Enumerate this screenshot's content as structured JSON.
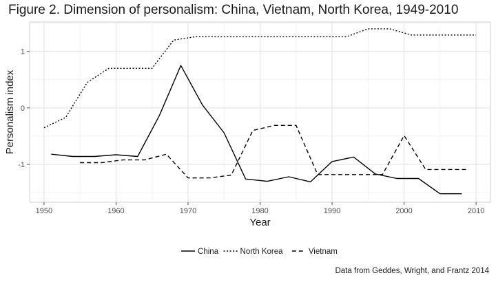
{
  "chart_data": {
    "type": "line",
    "title": "Figure 2. Dimension of personalism: China, Vietnam, North Korea, 1949-2010",
    "xlabel": "Year",
    "ylabel": "Personalism index",
    "caption": "Data from Geddes, Wright, and Frantz 2014",
    "xlim": [
      1948,
      2012
    ],
    "ylim": [
      -1.67,
      1.52
    ],
    "xticks": [
      1950,
      1960,
      1970,
      1980,
      1990,
      2000,
      2010
    ],
    "yticks": [
      -1,
      0,
      1
    ],
    "grid": true,
    "legend_position": "bottom",
    "series": [
      {
        "name": "China",
        "dash": "solid",
        "color": "#000000",
        "points": [
          [
            1951,
            -0.82
          ],
          [
            1954,
            -0.86
          ],
          [
            1957,
            -0.86
          ],
          [
            1960,
            -0.83
          ],
          [
            1963,
            -0.86
          ],
          [
            1966,
            -0.14
          ],
          [
            1969,
            0.75
          ],
          [
            1972,
            0.05
          ],
          [
            1975,
            -0.44
          ],
          [
            1978,
            -1.26
          ],
          [
            1981,
            -1.3
          ],
          [
            1984,
            -1.22
          ],
          [
            1987,
            -1.31
          ],
          [
            1990,
            -0.95
          ],
          [
            1993,
            -0.87
          ],
          [
            1996,
            -1.17
          ],
          [
            1999,
            -1.25
          ],
          [
            2002,
            -1.25
          ],
          [
            2005,
            -1.52
          ],
          [
            2008,
            -1.52
          ]
        ]
      },
      {
        "name": "North Korea",
        "dash": "dotted",
        "color": "#000000",
        "points": [
          [
            1950,
            -0.35
          ],
          [
            1953,
            -0.17
          ],
          [
            1956,
            0.45
          ],
          [
            1959,
            0.7
          ],
          [
            1962,
            0.7
          ],
          [
            1965,
            0.7
          ],
          [
            1968,
            1.2
          ],
          [
            1971,
            1.26
          ],
          [
            1974,
            1.26
          ],
          [
            1977,
            1.26
          ],
          [
            1980,
            1.26
          ],
          [
            1983,
            1.26
          ],
          [
            1986,
            1.26
          ],
          [
            1989,
            1.26
          ],
          [
            1992,
            1.26
          ],
          [
            1995,
            1.4
          ],
          [
            1998,
            1.4
          ],
          [
            2001,
            1.29
          ],
          [
            2004,
            1.29
          ],
          [
            2007,
            1.29
          ],
          [
            2010,
            1.29
          ]
        ]
      },
      {
        "name": "Vietnam",
        "dash": "dashed",
        "color": "#000000",
        "points": [
          [
            1955,
            -0.97
          ],
          [
            1958,
            -0.97
          ],
          [
            1961,
            -0.92
          ],
          [
            1964,
            -0.92
          ],
          [
            1967,
            -0.82
          ],
          [
            1970,
            -1.24
          ],
          [
            1973,
            -1.24
          ],
          [
            1976,
            -1.19
          ],
          [
            1979,
            -0.4
          ],
          [
            1982,
            -0.31
          ],
          [
            1985,
            -0.31
          ],
          [
            1988,
            -1.18
          ],
          [
            1991,
            -1.18
          ],
          [
            1994,
            -1.18
          ],
          [
            1997,
            -1.18
          ],
          [
            2000,
            -0.49
          ],
          [
            2003,
            -1.09
          ],
          [
            2006,
            -1.09
          ],
          [
            2009,
            -1.09
          ]
        ]
      }
    ]
  }
}
